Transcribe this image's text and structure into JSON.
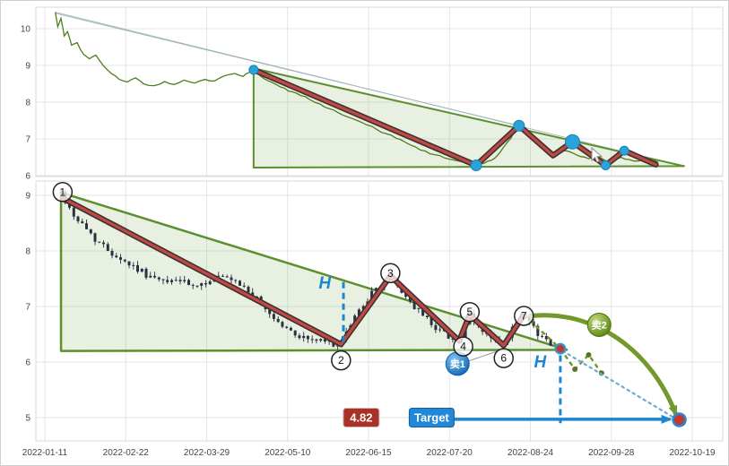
{
  "chart_data": {
    "type": "candlestick",
    "title": "",
    "x_ticks": [
      "2022-01-11",
      "2022-02-22",
      "2022-03-29",
      "2022-05-10",
      "2022-06-15",
      "2022-07-20",
      "2022-08-24",
      "2022-09-28",
      "2022-10-19"
    ],
    "colors": {
      "grid": "#e4e4e4",
      "frame": "#d9d9d9",
      "axis_text": "#444444",
      "price_line": "#4e7d1e",
      "triangle_fill": "rgba(130,180,90,0.18)",
      "triangle_edge": "#5c8f2e",
      "zig_red": "#c04a41",
      "zig_outline": "#3f3136",
      "pivot_dot": "#2aa2dc",
      "candle": "#2a3142",
      "blue": "#1e86d0",
      "blue_light": "#69abd6",
      "green_proj": "#6f9627",
      "green_arrow": "#74982c",
      "sell1": "#1976d2",
      "sell2": "#6d9422",
      "price_box": "#a93228",
      "target_box": "#2288d8",
      "marker_red": "#bf3a33",
      "wedge_line": "#9fb4ba"
    },
    "top_panel": {
      "y_ticks": [
        10,
        9,
        8,
        7,
        6
      ],
      "y_range": [
        5.9,
        10.55
      ],
      "price_line_points": [
        [
          0.13,
          10.45
        ],
        [
          0.16,
          10.05
        ],
        [
          0.2,
          10.28
        ],
        [
          0.24,
          9.8
        ],
        [
          0.28,
          9.92
        ],
        [
          0.33,
          9.55
        ],
        [
          0.4,
          9.62
        ],
        [
          0.48,
          9.3
        ],
        [
          0.55,
          9.18
        ],
        [
          0.63,
          9.28
        ],
        [
          0.72,
          9.0
        ],
        [
          0.82,
          8.78
        ],
        [
          0.92,
          8.62
        ],
        [
          1.02,
          8.55
        ],
        [
          1.12,
          8.66
        ],
        [
          1.22,
          8.5
        ],
        [
          1.35,
          8.45
        ],
        [
          1.48,
          8.56
        ],
        [
          1.6,
          8.48
        ],
        [
          1.72,
          8.6
        ],
        [
          1.85,
          8.52
        ],
        [
          1.98,
          8.62
        ],
        [
          2.1,
          8.58
        ],
        [
          2.22,
          8.72
        ],
        [
          2.35,
          8.78
        ],
        [
          2.45,
          8.7
        ],
        [
          2.52,
          8.8
        ],
        [
          2.58,
          8.9
        ],
        [
          2.66,
          8.72
        ],
        [
          2.76,
          8.58
        ],
        [
          2.86,
          8.48
        ],
        [
          2.96,
          8.38
        ],
        [
          3.06,
          8.28
        ],
        [
          3.16,
          8.18
        ],
        [
          3.28,
          8.06
        ],
        [
          3.4,
          7.95
        ],
        [
          3.52,
          7.82
        ],
        [
          3.62,
          7.72
        ],
        [
          3.74,
          7.6
        ],
        [
          3.86,
          7.5
        ],
        [
          3.98,
          7.38
        ],
        [
          4.1,
          7.26
        ],
        [
          4.22,
          7.14
        ],
        [
          4.34,
          7.02
        ],
        [
          4.46,
          6.9
        ],
        [
          4.58,
          6.78
        ],
        [
          4.7,
          6.67
        ],
        [
          4.82,
          6.57
        ],
        [
          4.94,
          6.48
        ],
        [
          5.06,
          6.42
        ],
        [
          5.18,
          6.36
        ],
        [
          5.3,
          6.3
        ],
        [
          5.42,
          6.33
        ],
        [
          5.52,
          6.42
        ],
        [
          5.62,
          6.62
        ],
        [
          5.72,
          6.92
        ],
        [
          5.8,
          7.18
        ],
        [
          5.86,
          7.36
        ],
        [
          5.94,
          7.18
        ],
        [
          6.02,
          7.0
        ],
        [
          6.12,
          6.85
        ],
        [
          6.22,
          6.7
        ],
        [
          6.32,
          6.6
        ],
        [
          6.42,
          6.68
        ],
        [
          6.52,
          6.62
        ],
        [
          6.62,
          6.52
        ],
        [
          6.72,
          6.46
        ],
        [
          6.82,
          6.55
        ],
        [
          6.92,
          6.42
        ],
        [
          7.02,
          6.36
        ],
        [
          7.12,
          6.5
        ],
        [
          7.22,
          6.44
        ],
        [
          7.34,
          6.4
        ],
        [
          7.46,
          6.46
        ],
        [
          7.58,
          6.36
        ]
      ],
      "wedge_lines": [
        [
          [
            0.13,
            10.45
          ],
          [
            7.8,
            6.3
          ]
        ],
        [
          [
            0.13,
            10.42
          ],
          [
            5.86,
            7.36
          ]
        ]
      ],
      "triangle": {
        "apex_t": 2.58,
        "apex_p": 8.92,
        "right_t": 7.9,
        "right_p": 6.26,
        "base_p": 6.22
      },
      "zigzag": [
        [
          2.58,
          8.88
        ],
        [
          5.33,
          6.28
        ],
        [
          5.86,
          7.36
        ],
        [
          6.28,
          6.55
        ],
        [
          6.52,
          6.92
        ],
        [
          6.93,
          6.28
        ],
        [
          7.16,
          6.68
        ],
        [
          7.55,
          6.3
        ]
      ],
      "pivot_dots": [
        {
          "t": 2.58,
          "p": 8.88,
          "r": 5
        },
        {
          "t": 5.33,
          "p": 6.28,
          "r": 6
        },
        {
          "t": 5.86,
          "p": 7.36,
          "r": 6
        },
        {
          "t": 6.52,
          "p": 6.92,
          "r": 8
        },
        {
          "t": 6.93,
          "p": 6.28,
          "r": 5
        },
        {
          "t": 7.16,
          "p": 6.68,
          "r": 5
        }
      ]
    },
    "bottom_panel": {
      "y_ticks": [
        9,
        8,
        7,
        6,
        5
      ],
      "candle_anchor_path": [
        [
          0.2,
          9.05
        ],
        [
          0.28,
          8.82
        ],
        [
          0.38,
          8.6
        ],
        [
          0.5,
          8.42
        ],
        [
          0.62,
          8.22
        ],
        [
          0.75,
          8.05
        ],
        [
          0.88,
          7.92
        ],
        [
          1.0,
          7.8
        ],
        [
          1.12,
          7.7
        ],
        [
          1.25,
          7.58
        ],
        [
          1.38,
          7.48
        ],
        [
          1.5,
          7.42
        ],
        [
          1.62,
          7.5
        ],
        [
          1.75,
          7.4
        ],
        [
          1.88,
          7.32
        ],
        [
          2.0,
          7.45
        ],
        [
          2.12,
          7.55
        ],
        [
          2.25,
          7.48
        ],
        [
          2.38,
          7.4
        ],
        [
          2.5,
          7.3
        ],
        [
          2.62,
          7.12
        ],
        [
          2.75,
          6.92
        ],
        [
          2.88,
          6.72
        ],
        [
          3.0,
          6.58
        ],
        [
          3.12,
          6.48
        ],
        [
          3.25,
          6.42
        ],
        [
          3.4,
          6.38
        ],
        [
          3.55,
          6.34
        ],
        [
          3.66,
          6.3
        ],
        [
          3.8,
          6.75
        ],
        [
          3.95,
          7.08
        ],
        [
          4.1,
          7.32
        ],
        [
          4.27,
          7.55
        ],
        [
          4.4,
          7.28
        ],
        [
          4.55,
          7.02
        ],
        [
          4.7,
          6.8
        ],
        [
          4.85,
          6.6
        ],
        [
          5.0,
          6.46
        ],
        [
          5.12,
          6.38
        ],
        [
          5.25,
          6.82
        ],
        [
          5.4,
          6.58
        ],
        [
          5.55,
          6.38
        ],
        [
          5.67,
          6.3
        ],
        [
          5.8,
          6.66
        ],
        [
          5.92,
          6.84
        ],
        [
          6.05,
          6.58
        ],
        [
          6.15,
          6.44
        ],
        [
          6.25,
          6.35
        ]
      ],
      "candle_count": 116,
      "triangle": {
        "apex_t": 0.2,
        "apex_p": 9.05,
        "right_t": 6.45,
        "right_p": 6.22,
        "base_p": 6.2
      },
      "zigzag": [
        [
          0.22,
          8.95
        ],
        [
          3.66,
          6.32
        ],
        [
          4.27,
          7.55
        ],
        [
          5.12,
          6.38
        ],
        [
          5.25,
          6.85
        ],
        [
          5.67,
          6.3
        ],
        [
          5.92,
          6.85
        ]
      ],
      "wave_labels": [
        {
          "label": "1",
          "t": 0.22,
          "p": 9.06
        },
        {
          "label": "2",
          "t": 3.66,
          "p": 6.03
        },
        {
          "label": "3",
          "t": 4.27,
          "p": 7.6
        },
        {
          "label": "4",
          "t": 5.17,
          "p": 6.28
        },
        {
          "label": "5",
          "t": 5.25,
          "p": 6.9
        },
        {
          "label": "6",
          "t": 5.67,
          "p": 6.07
        },
        {
          "label": "7",
          "t": 5.92,
          "p": 6.83
        }
      ],
      "measures": [
        {
          "label": "H",
          "t": 3.69,
          "p_from": 7.44,
          "p_to": 6.28,
          "text_t": 3.46,
          "text_p": 7.32
        },
        {
          "label": "H",
          "t": 6.37,
          "p_from": 6.12,
          "p_to": 4.9,
          "text_t": 6.12,
          "text_p": 5.9
        }
      ],
      "sell_markers": [
        {
          "label": "卖1",
          "t": 5.1,
          "p": 5.97,
          "pointer": [
            [
              5.24,
              6.02
            ],
            [
              5.64,
              6.22
            ]
          ]
        },
        {
          "label": "卖2",
          "t": 6.85,
          "p": 6.67
        }
      ],
      "post_pattern_line": [
        [
          5.92,
          6.85
        ],
        [
          6.37,
          6.24
        ]
      ],
      "projection_zigzag": [
        [
          6.37,
          6.24
        ],
        [
          6.55,
          5.87
        ],
        [
          6.72,
          6.13
        ],
        [
          6.88,
          5.8
        ]
      ],
      "breakout_marker": {
        "t": 6.37,
        "p": 6.24
      },
      "target_marker": {
        "t": 7.84,
        "p": 4.96
      },
      "blue_dotted_line": [
        [
          6.4,
          6.2
        ],
        [
          7.83,
          4.95
        ]
      ],
      "green_curve_arrow": {
        "from": [
          6.0,
          6.83
        ],
        "c1": [
          6.8,
          6.95
        ],
        "c2": [
          7.5,
          6.2
        ],
        "to": [
          7.8,
          5.05
        ]
      },
      "target_arrow": {
        "from": [
          5.05,
          4.97
        ],
        "to": [
          7.73,
          4.97
        ]
      },
      "price_box": {
        "text": "4.82",
        "t": 3.91,
        "p": 5.0
      },
      "target_box": {
        "text": "Target",
        "t": 4.78,
        "p": 5.0
      }
    }
  }
}
